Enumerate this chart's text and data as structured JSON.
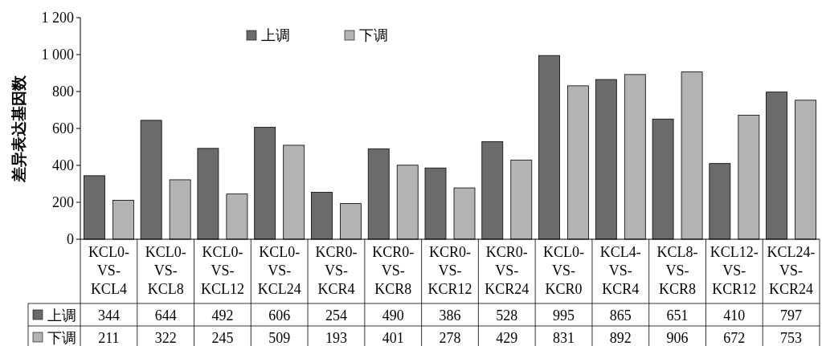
{
  "chart_data": {
    "type": "bar",
    "ylabel": "差异表达基因数",
    "categories": [
      "KCL0-VS-KCL4",
      "KCL0-VS-KCL8",
      "KCL0-VS-KCL12",
      "KCL0-VS-KCL24",
      "KCR0-VS-KCR4",
      "KCR0-VS-KCR8",
      "KCR0-VS-KCR12",
      "KCR0-VS-KCR24",
      "KCL0-VS-KCR0",
      "KCL4-VS-KCR4",
      "KCL8-VS-KCR8",
      "KCL12-VS-KCR12",
      "KCL24-VS-KCR24"
    ],
    "series": [
      {
        "name": "上调",
        "color": "#6b6b6b",
        "values": [
          344,
          644,
          492,
          606,
          254,
          490,
          386,
          528,
          995,
          865,
          651,
          410,
          797
        ]
      },
      {
        "name": "下调",
        "color": "#b3b3b3",
        "values": [
          211,
          322,
          245,
          509,
          193,
          401,
          278,
          429,
          831,
          892,
          906,
          672,
          753
        ]
      }
    ],
    "ylim": [
      0,
      1200
    ],
    "yticks": [
      0,
      200,
      400,
      600,
      800,
      {
        "value": 1000,
        "label": "1 000"
      },
      {
        "value": 1200,
        "label": "1 200"
      }
    ],
    "data_labels": true,
    "legend": "top",
    "grid": false
  }
}
